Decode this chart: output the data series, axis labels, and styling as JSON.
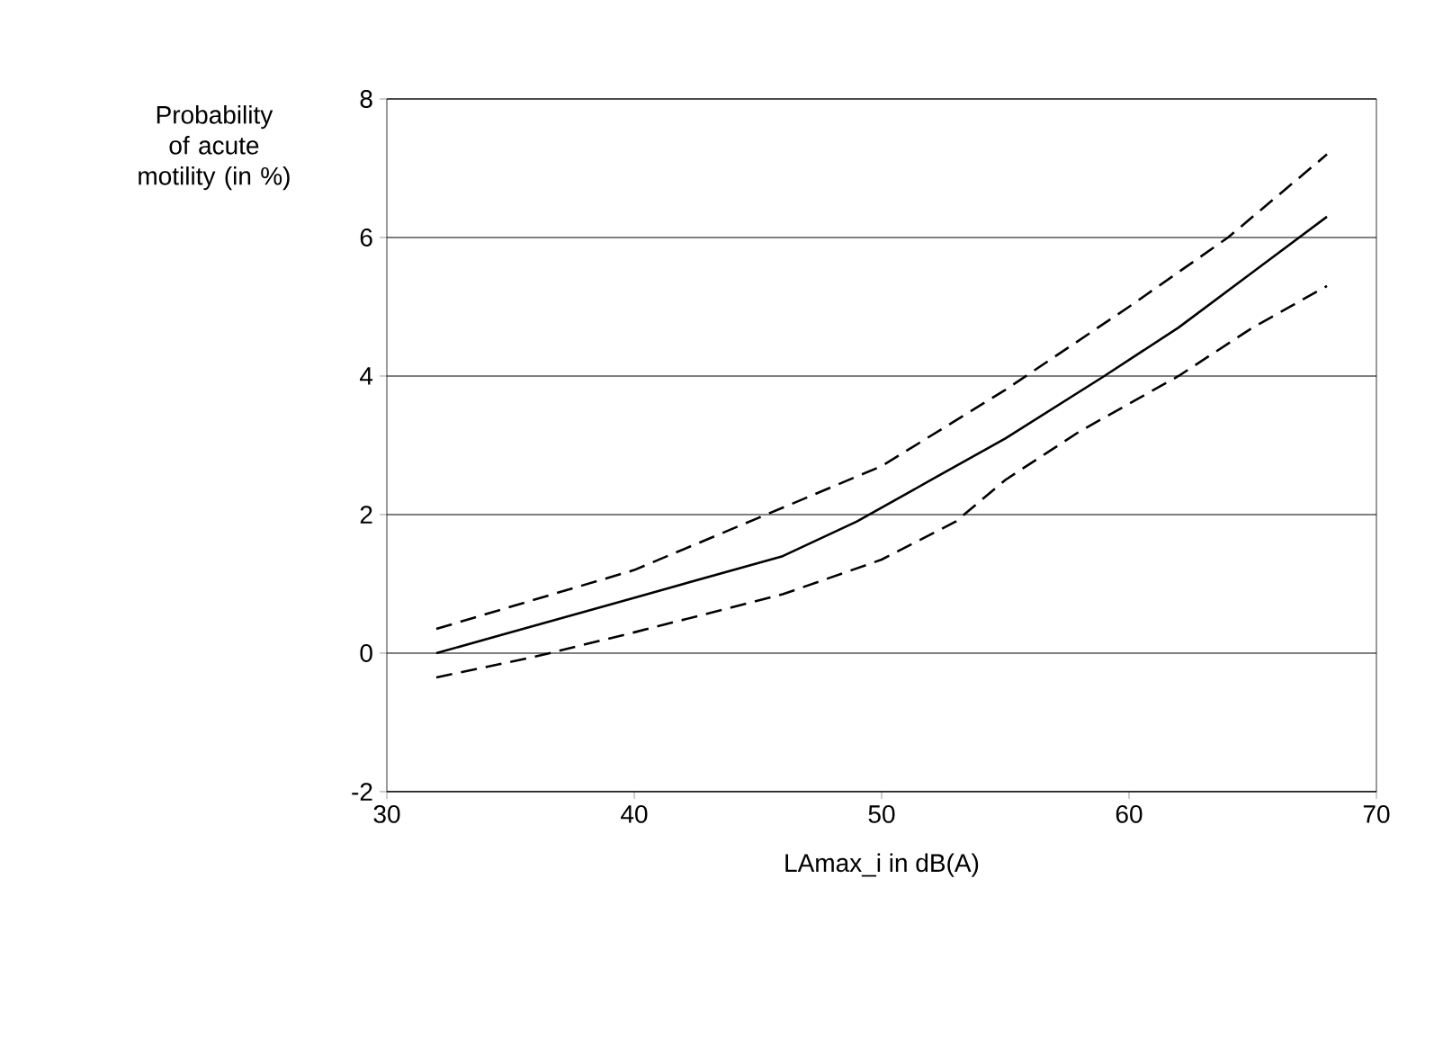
{
  "chart_data": {
    "type": "line",
    "xlabel": "LAmax_i in dB(A)",
    "ylabel": "Probability of acute motility (in %)",
    "xlim": [
      30,
      70
    ],
    "xticks": [
      30,
      40,
      50,
      60,
      70
    ],
    "ylim": [
      -2,
      8
    ],
    "yticks": [
      -2,
      0,
      2,
      4,
      6,
      8
    ],
    "grid": "y",
    "marker": "none",
    "series": [
      {
        "color": "#000000",
        "line_style": "solid",
        "x": [
          32,
          34.5,
          40,
          46,
          49,
          52,
          55,
          59,
          62,
          65,
          68
        ],
        "values": [
          0,
          0.25,
          0.8,
          1.4,
          1.9,
          2.5,
          3.1,
          4.0,
          4.7,
          5.5,
          6.3
        ]
      },
      {
        "color": "#000000",
        "line_style": "dashed",
        "x": [
          32,
          40,
          45,
          50,
          55,
          60,
          64,
          68
        ],
        "values": [
          0.35,
          1.2,
          1.95,
          2.7,
          3.8,
          5.0,
          6.0,
          7.2
        ]
      },
      {
        "color": "#000000",
        "line_style": "dashed",
        "x": [
          32,
          34,
          36,
          40,
          46,
          50,
          53,
          55,
          58,
          62,
          65,
          68
        ],
        "values": [
          -0.35,
          -0.2,
          -0.05,
          0.3,
          0.85,
          1.35,
          1.9,
          2.5,
          3.2,
          4.0,
          4.7,
          5.3
        ]
      }
    ]
  }
}
